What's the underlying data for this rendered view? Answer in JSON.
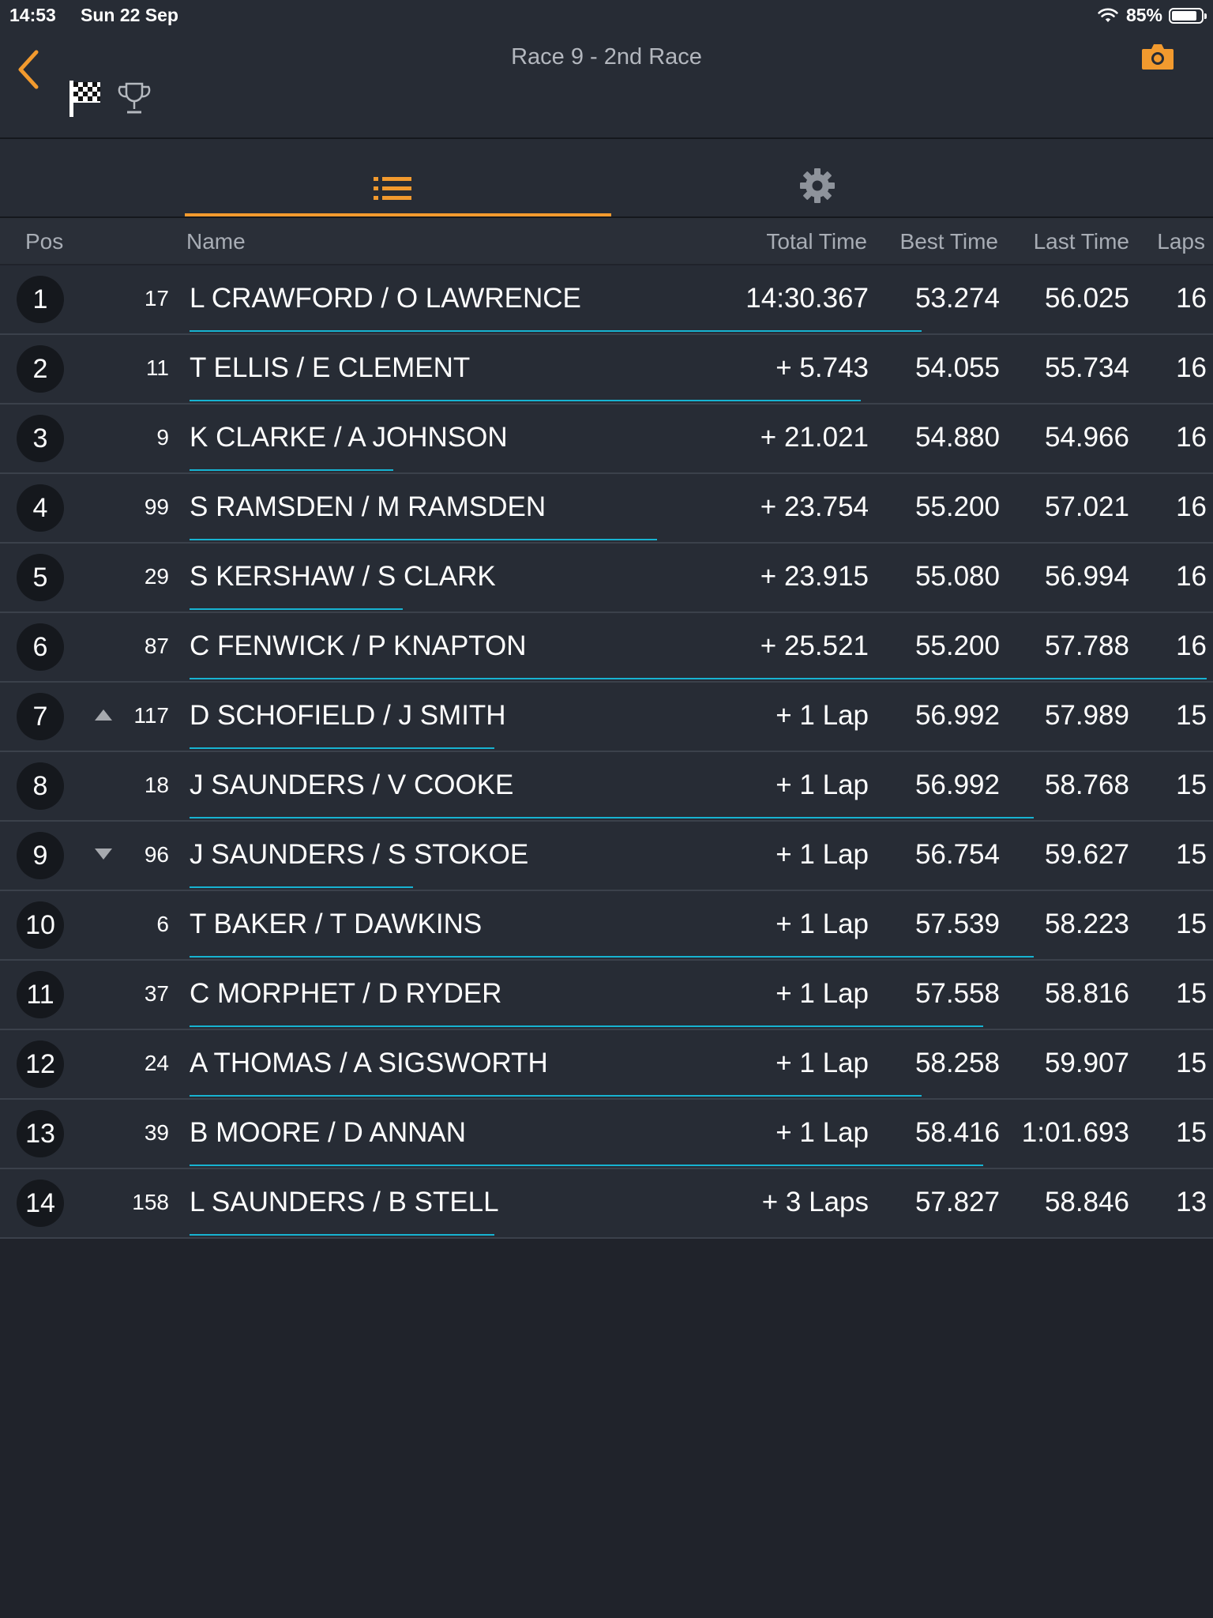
{
  "status_bar": {
    "time": "14:53",
    "date": "Sun 22 Sep",
    "battery_percent": "85%",
    "battery_level": 0.85,
    "icons": [
      "wifi-icon",
      "battery-icon"
    ]
  },
  "header": {
    "title": "Race 9 - 2nd Race",
    "icons": [
      "back-chevron-icon",
      "checkered-flag-icon",
      "trophy-icon",
      "camera-icon"
    ]
  },
  "tabs": [
    {
      "icon": "list-icon",
      "active": true
    },
    {
      "icon": "gear-icon",
      "active": false
    }
  ],
  "columns": {
    "pos": "Pos",
    "name": "Name",
    "total_time": "Total Time",
    "best_time": "Best Time",
    "last_time": "Last Time",
    "laps": "Laps"
  },
  "colors": {
    "accent": "#f29a2e",
    "progress": "#17b3d1",
    "background": "#20232b",
    "row": "#272c35"
  },
  "results": [
    {
      "pos": "1",
      "trend": "",
      "kart": "17",
      "name": "L CRAWFORD / O LAWRENCE",
      "total": "14:30.367",
      "best": "53.274",
      "last": "56.025",
      "laps": "16",
      "progress": 0.72
    },
    {
      "pos": "2",
      "trend": "",
      "kart": "11",
      "name": "T ELLIS / E CLEMENT",
      "total": "+ 5.743",
      "best": "54.055",
      "last": "55.734",
      "laps": "16",
      "progress": 0.66
    },
    {
      "pos": "3",
      "trend": "",
      "kart": "9",
      "name": "K CLARKE / A JOHNSON",
      "total": "+ 21.021",
      "best": "54.880",
      "last": "54.966",
      "laps": "16",
      "progress": 0.2
    },
    {
      "pos": "4",
      "trend": "",
      "kart": "99",
      "name": "S RAMSDEN / M RAMSDEN",
      "total": "+ 23.754",
      "best": "55.200",
      "last": "57.021",
      "laps": "16",
      "progress": 0.46
    },
    {
      "pos": "5",
      "trend": "",
      "kart": "29",
      "name": "S KERSHAW / S CLARK",
      "total": "+ 23.915",
      "best": "55.080",
      "last": "56.994",
      "laps": "16",
      "progress": 0.21
    },
    {
      "pos": "6",
      "trend": "",
      "kart": "87",
      "name": "C FENWICK / P KNAPTON",
      "total": "+ 25.521",
      "best": "55.200",
      "last": "57.788",
      "laps": "16",
      "progress": 1.0
    },
    {
      "pos": "7",
      "trend": "up",
      "kart": "117",
      "name": "D SCHOFIELD / J SMITH",
      "total": "+ 1 Lap",
      "best": "56.992",
      "last": "57.989",
      "laps": "15",
      "progress": 0.3
    },
    {
      "pos": "8",
      "trend": "",
      "kart": "18",
      "name": "J SAUNDERS / V COOKE",
      "total": "+ 1 Lap",
      "best": "56.992",
      "last": "58.768",
      "laps": "15",
      "progress": 0.83
    },
    {
      "pos": "9",
      "trend": "down",
      "kart": "96",
      "name": "J SAUNDERS / S STOKOE",
      "total": "+ 1 Lap",
      "best": "56.754",
      "last": "59.627",
      "laps": "15",
      "progress": 0.22
    },
    {
      "pos": "10",
      "trend": "",
      "kart": "6",
      "name": "T BAKER / T DAWKINS",
      "total": "+ 1 Lap",
      "best": "57.539",
      "last": "58.223",
      "laps": "15",
      "progress": 0.83
    },
    {
      "pos": "11",
      "trend": "",
      "kart": "37",
      "name": "C MORPHET / D RYDER",
      "total": "+ 1 Lap",
      "best": "57.558",
      "last": "58.816",
      "laps": "15",
      "progress": 0.78
    },
    {
      "pos": "12",
      "trend": "",
      "kart": "24",
      "name": "A THOMAS / A SIGSWORTH",
      "total": "+ 1 Lap",
      "best": "58.258",
      "last": "59.907",
      "laps": "15",
      "progress": 0.72
    },
    {
      "pos": "13",
      "trend": "",
      "kart": "39",
      "name": "B MOORE / D ANNAN",
      "total": "+ 1 Lap",
      "best": "58.416",
      "last": "1:01.693",
      "laps": "15",
      "progress": 0.78
    },
    {
      "pos": "14",
      "trend": "",
      "kart": "158",
      "name": "L SAUNDERS / B STELL",
      "total": "+ 3 Laps",
      "best": "57.827",
      "last": "58.846",
      "laps": "13",
      "progress": 0.3
    }
  ]
}
